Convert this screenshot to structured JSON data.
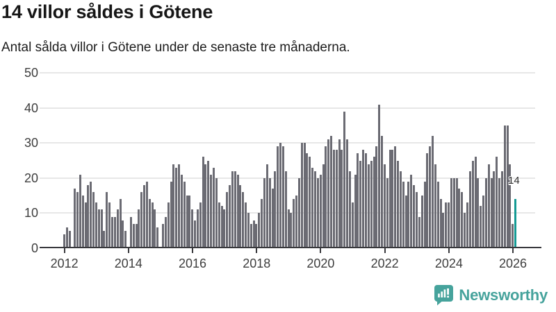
{
  "header": {
    "title": "14 villor såldes i Götene",
    "subtitle": "Antal sålda villor i Götene under de senaste tre månaderna."
  },
  "chart_data": {
    "type": "bar",
    "title": "14 villor såldes i Götene",
    "subtitle": "Antal sålda villor i Götene under de senaste tre månaderna.",
    "xlabel": "",
    "ylabel": "",
    "ylim": [
      0,
      50
    ],
    "yticks": [
      0,
      10,
      20,
      30,
      40,
      50
    ],
    "grid": "horizontal",
    "legend": "none",
    "x_start": "2012-01",
    "x_end": "2026-02",
    "x_tick_labels": [
      "2012",
      "2014",
      "2016",
      "2018",
      "2020",
      "2022",
      "2024",
      "2026"
    ],
    "values": [
      4,
      6,
      5,
      0,
      17,
      16,
      21,
      15,
      13,
      18,
      19,
      16,
      13,
      11,
      11,
      5,
      16,
      13,
      9,
      9,
      11,
      14,
      8,
      5,
      0,
      9,
      7,
      7,
      11,
      16,
      18,
      19,
      14,
      13,
      11,
      6,
      0,
      7,
      9,
      13,
      19,
      24,
      23,
      24,
      21,
      19,
      15,
      15,
      11,
      8,
      11,
      13,
      26,
      24,
      25,
      21,
      23,
      20,
      13,
      12,
      11,
      16,
      18,
      22,
      22,
      21,
      18,
      16,
      13,
      10,
      7,
      8,
      7,
      10,
      14,
      20,
      24,
      20,
      17,
      22,
      29,
      30,
      29,
      22,
      11,
      10,
      14,
      15,
      20,
      30,
      30,
      27,
      26,
      23,
      22,
      20,
      21,
      24,
      29,
      31,
      32,
      28,
      28,
      31,
      28,
      39,
      31,
      22,
      13,
      21,
      27,
      25,
      28,
      27,
      24,
      25,
      26,
      29,
      41,
      32,
      24,
      20,
      28,
      28,
      29,
      25,
      22,
      19,
      15,
      19,
      21,
      18,
      16,
      9,
      15,
      19,
      27,
      29,
      32,
      24,
      19,
      14,
      10,
      13,
      13,
      20,
      20,
      20,
      17,
      16,
      10,
      13,
      22,
      25,
      26,
      20,
      12,
      15,
      20,
      24,
      20,
      22,
      26,
      20,
      22,
      35,
      35,
      24,
      7,
      14
    ],
    "highlight": {
      "index": 169,
      "value": 14,
      "label": "14"
    },
    "colors": {
      "bar": "#6b6b73",
      "highlight": "#149a94",
      "grid": "#e7e7e7",
      "axis": "#38383c",
      "tick_text": "#3d3d3d"
    }
  },
  "footer": {
    "brand": "Newsworthy",
    "brand_color": "#46a39c"
  }
}
